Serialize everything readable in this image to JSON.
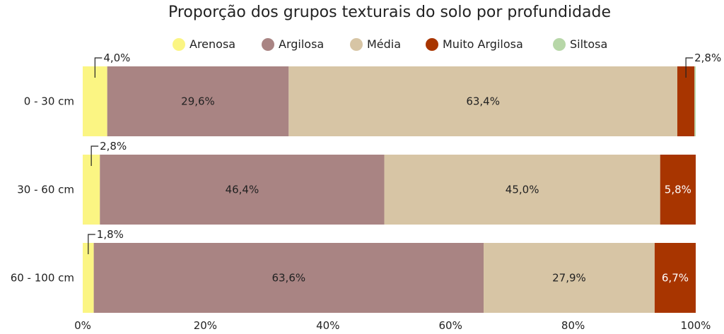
{
  "chart_data": {
    "type": "bar",
    "orientation": "horizontal",
    "stacked": true,
    "title": "Proporção dos grupos texturais do solo por profundidade",
    "categories": [
      "0 - 30 cm",
      "30 - 60 cm",
      "60 - 100 cm"
    ],
    "series": [
      {
        "name": "Arenosa",
        "color": "#fbf583",
        "values": [
          4.0,
          2.8,
          1.8
        ],
        "labels": [
          "4,0%",
          "2,8%",
          "1,8%"
        ],
        "label_color": "#222222"
      },
      {
        "name": "Argilosa",
        "color": "#a98483",
        "values": [
          29.6,
          46.4,
          63.6
        ],
        "labels": [
          "29,6%",
          "46,4%",
          "63,6%"
        ],
        "label_color": "#222222"
      },
      {
        "name": "Média",
        "color": "#d7c5a5",
        "values": [
          63.4,
          45.0,
          27.9
        ],
        "labels": [
          "63,4%",
          "45,0%",
          "27,9%"
        ],
        "label_color": "#222222"
      },
      {
        "name": "Muito Argilosa",
        "color": "#a83500",
        "values": [
          2.8,
          5.8,
          6.7
        ],
        "labels": [
          "2,8%",
          "5,8%",
          "6,7%"
        ],
        "label_color": "#ffffff"
      },
      {
        "name": "Siltosa",
        "color": "#b7d7a8",
        "values": [
          0.2,
          0,
          0
        ],
        "labels": [
          "",
          "",
          ""
        ],
        "label_color": "#222222"
      }
    ],
    "xaxis": {
      "ticks": [
        0,
        20,
        40,
        60,
        80,
        100
      ],
      "tick_labels": [
        "0%",
        "20%",
        "40%",
        "60%",
        "80%",
        "100%"
      ],
      "range": [
        0,
        100
      ]
    },
    "xlabel": "",
    "ylabel": "",
    "grid": false,
    "legend_position": "top"
  }
}
